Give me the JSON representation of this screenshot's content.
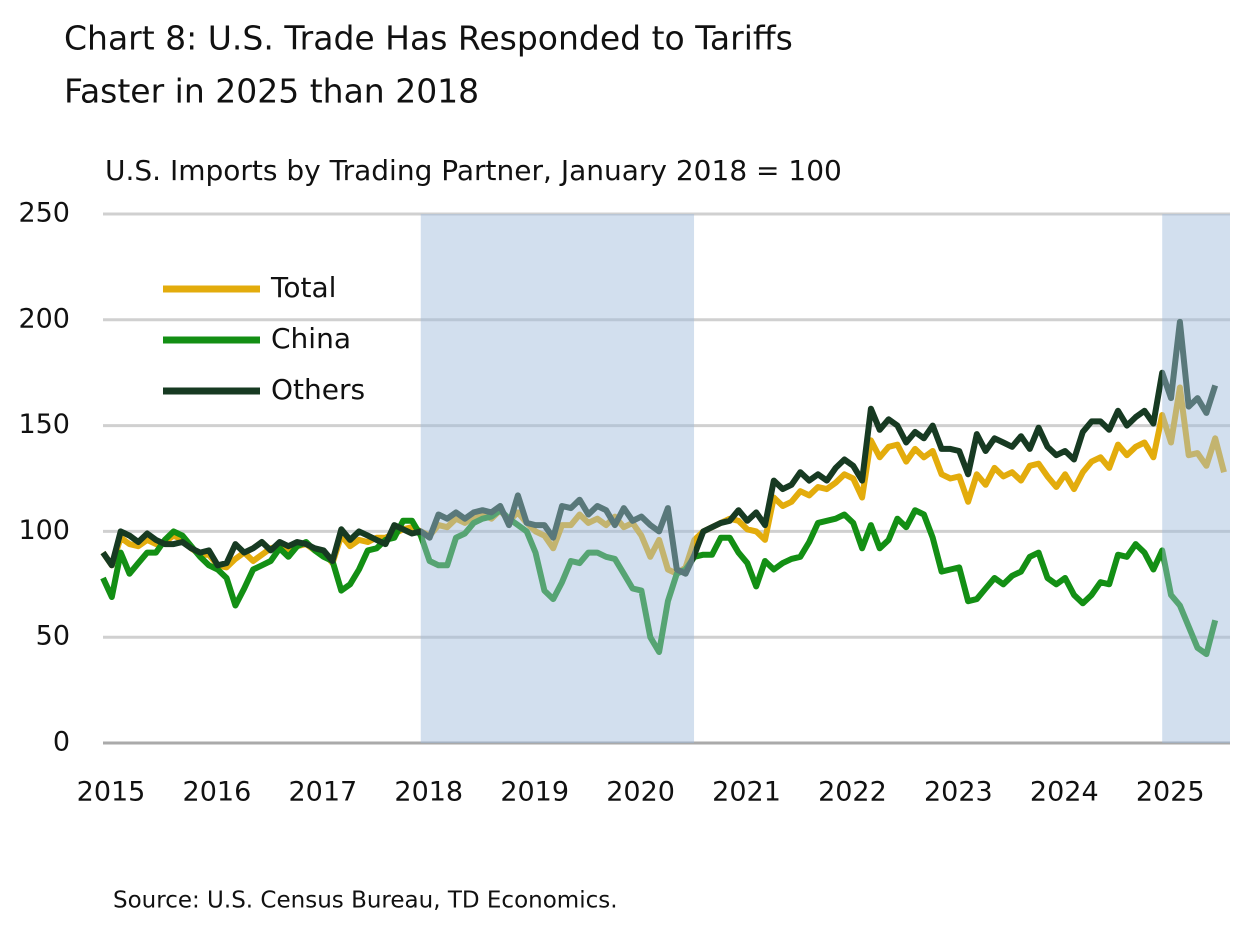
{
  "chart_data": {
    "type": "line",
    "title": [
      "Chart 8: U.S. Trade Has Responded to Tariffs",
      "Faster in 2025 than 2018"
    ],
    "subtitle": "U.S. Imports by Trading Partner, January 2018 = 100",
    "source": "Source: U.S. Census Bureau, TD Economics.",
    "x": [
      2015,
      2015.083,
      2015.167,
      2015.25,
      2015.333,
      2015.417,
      2015.5,
      2015.583,
      2015.667,
      2015.75,
      2015.833,
      2015.917,
      2016,
      2016.083,
      2016.167,
      2016.25,
      2016.333,
      2016.417,
      2016.5,
      2016.583,
      2016.667,
      2016.75,
      2016.833,
      2016.917,
      2017,
      2017.083,
      2017.167,
      2017.25,
      2017.333,
      2017.417,
      2017.5,
      2017.583,
      2017.667,
      2017.75,
      2017.833,
      2017.917,
      2018,
      2018.083,
      2018.167,
      2018.25,
      2018.333,
      2018.417,
      2018.5,
      2018.583,
      2018.667,
      2018.75,
      2018.833,
      2018.917,
      2019,
      2019.083,
      2019.167,
      2019.25,
      2019.333,
      2019.417,
      2019.5,
      2019.583,
      2019.667,
      2019.75,
      2019.833,
      2019.917,
      2020,
      2020.083,
      2020.167,
      2020.25,
      2020.333,
      2020.417,
      2020.5,
      2020.583,
      2020.667,
      2020.75,
      2020.833,
      2020.917,
      2021,
      2021.083,
      2021.167,
      2021.25,
      2021.333,
      2021.417,
      2021.5,
      2021.583,
      2021.667,
      2021.75,
      2021.833,
      2021.917,
      2022,
      2022.083,
      2022.167,
      2022.25,
      2022.333,
      2022.417,
      2022.5,
      2022.583,
      2022.667,
      2022.75,
      2022.833,
      2022.917,
      2023,
      2023.083,
      2023.167,
      2023.25,
      2023.333,
      2023.417,
      2023.5,
      2023.583,
      2023.667,
      2023.75,
      2023.833,
      2023.917,
      2024,
      2024.083,
      2024.167,
      2024.25,
      2024.333,
      2024.417,
      2024.5,
      2024.583,
      2024.667,
      2024.75,
      2024.833,
      2024.917,
      2025,
      2025.083,
      2025.167,
      2025.25,
      2025.333,
      2025.417,
      2025.5,
      2025.583
    ],
    "series": [
      {
        "name": "Total",
        "color": "#e3ac0c",
        "values": [
          90,
          84,
          97,
          94,
          93,
          96,
          94,
          95,
          98,
          96,
          92,
          89,
          89,
          84,
          83,
          87,
          90,
          86,
          89,
          92,
          93,
          90,
          93,
          94,
          91,
          90,
          85,
          98,
          93,
          96,
          95,
          97,
          97,
          99,
          101,
          102,
          100,
          98,
          103,
          102,
          106,
          104,
          107,
          108,
          106,
          110,
          105,
          109,
          104,
          100,
          98,
          92,
          103,
          103,
          108,
          104,
          106,
          103,
          107,
          102,
          104,
          98,
          88,
          96,
          82,
          80,
          83,
          96,
          100,
          102,
          104,
          106,
          105,
          101,
          100,
          96,
          116,
          112,
          114,
          119,
          117,
          121,
          120,
          123,
          127,
          125,
          116,
          143,
          135,
          140,
          141,
          133,
          139,
          135,
          138,
          127,
          125,
          126,
          114,
          127,
          122,
          130,
          126,
          128,
          124,
          131,
          132,
          126,
          121,
          127,
          120,
          128,
          133,
          135,
          130,
          141,
          136,
          140,
          142,
          135,
          155,
          142,
          168,
          136,
          137,
          131,
          144,
          128
        ]
      },
      {
        "name": "China",
        "color": "#138f14",
        "values": [
          78,
          69,
          90,
          80,
          85,
          90,
          90,
          96,
          100,
          98,
          93,
          88,
          84,
          82,
          78,
          65,
          73,
          82,
          84,
          86,
          92,
          88,
          93,
          95,
          91,
          88,
          86,
          72,
          75,
          82,
          91,
          92,
          96,
          97,
          105,
          105,
          98,
          86,
          84,
          84,
          97,
          99,
          104,
          106,
          107,
          110,
          106,
          103,
          100,
          90,
          72,
          68,
          76,
          86,
          85,
          90,
          90,
          88,
          87,
          80,
          73,
          72,
          50,
          43,
          67,
          80,
          82,
          88,
          89,
          89,
          97,
          97,
          90,
          85,
          74,
          86,
          82,
          85,
          87,
          88,
          95,
          104,
          105,
          106,
          108,
          104,
          92,
          103,
          92,
          96,
          106,
          102,
          110,
          108,
          97,
          81,
          82,
          83,
          67,
          68,
          73,
          78,
          75,
          79,
          81,
          88,
          90,
          78,
          75,
          78,
          70,
          66,
          70,
          76,
          75,
          89,
          88,
          94,
          90,
          82,
          91,
          70,
          65,
          55,
          45,
          42,
          58,
          null
        ]
      },
      {
        "name": "Others",
        "color": "#173a22",
        "values": [
          90,
          84,
          100,
          98,
          95,
          99,
          96,
          94,
          94,
          95,
          92,
          90,
          91,
          84,
          85,
          94,
          90,
          92,
          95,
          91,
          95,
          93,
          95,
          94,
          92,
          91,
          86,
          101,
          96,
          100,
          98,
          96,
          94,
          103,
          101,
          99,
          100,
          97,
          108,
          106,
          109,
          106,
          109,
          110,
          109,
          112,
          103,
          117,
          104,
          103,
          103,
          97,
          112,
          111,
          115,
          108,
          112,
          110,
          103,
          111,
          105,
          107,
          103,
          100,
          111,
          82,
          80,
          89,
          100,
          102,
          104,
          105,
          110,
          105,
          109,
          103,
          124,
          120,
          122,
          128,
          124,
          127,
          124,
          130,
          134,
          131,
          124,
          158,
          148,
          153,
          150,
          142,
          147,
          144,
          150,
          139,
          139,
          138,
          127,
          146,
          138,
          144,
          142,
          140,
          145,
          139,
          149,
          140,
          136,
          138,
          134,
          147,
          152,
          152,
          148,
          157,
          150,
          154,
          157,
          151,
          175,
          163,
          199,
          159,
          163,
          156,
          169,
          null
        ]
      }
    ],
    "shaded_periods": [
      [
        2018,
        2020.58
      ],
      [
        2025,
        2025.64
      ]
    ],
    "xlim": [
      2015,
      2025.64
    ],
    "xticks": [
      2015,
      2016,
      2017,
      2018,
      2019,
      2020,
      2021,
      2022,
      2023,
      2024,
      2025
    ],
    "ylim": [
      0,
      250
    ],
    "yticks": [
      0,
      50,
      100,
      150,
      200,
      250
    ],
    "grid": true,
    "legend": "upper left"
  }
}
